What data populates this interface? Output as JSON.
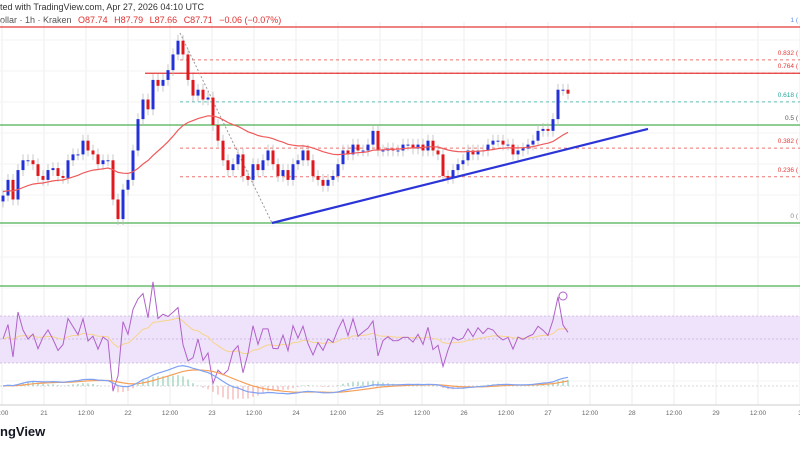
{
  "header": {
    "source_line": "ted with TradingView.com, Apr 27, 2026 04:10 UTC",
    "symbol_line": "ollar · 1h · Kraken",
    "open": "O87.74",
    "high": "H87.79",
    "low": "L87.66",
    "close": "C87.71",
    "change": "−0.06 (−0.07%)"
  },
  "logo_text": "ngView",
  "colors": {
    "up": "#2431d9",
    "down": "#e0191f",
    "trendline": "#2b35d6",
    "support": "#4caf50",
    "resistance": "#e53935",
    "ma": "#f05a5a",
    "rsi": "#b061c9",
    "rsi_band": "#efe2fb"
  },
  "chart_data": {
    "type": "candlestick",
    "interval": "1h",
    "exchange": "Kraken",
    "y_units": "fibonacci retracement ratio (0 = swing low, 1 = swing high)",
    "x_ticks": [
      "2:00",
      "21",
      "12:00",
      "22",
      "12:00",
      "23",
      "12:00",
      "24",
      "12:00",
      "25",
      "12:00",
      "26",
      "12:00",
      "27",
      "12:00",
      "28",
      "12:00",
      "29",
      "12:00",
      "3"
    ],
    "fib_levels": [
      {
        "label": "1 (",
        "value": 1,
        "color": "#5b8def"
      },
      {
        "label": "0.832 (",
        "value": 0.832,
        "color": "#e53935"
      },
      {
        "label": "0.764 (",
        "value": 0.764,
        "color": "#e53935"
      },
      {
        "label": "0.618 (",
        "value": 0.618,
        "color": "#26a69a"
      },
      {
        "label": "0.5 (",
        "value": 0.5,
        "color": "#555555"
      },
      {
        "label": "0.382 (",
        "value": 0.382,
        "color": "#e53935"
      },
      {
        "label": "0.236 (",
        "value": 0.236,
        "color": "#e53935"
      },
      {
        "label": "0 (",
        "value": 0,
        "color": "#888888"
      }
    ],
    "closes": [
      0.14,
      0.22,
      0.12,
      0.27,
      0.32,
      0.32,
      0.3,
      0.24,
      0.22,
      0.27,
      0.28,
      0.24,
      0.23,
      0.32,
      0.35,
      0.35,
      0.42,
      0.37,
      0.35,
      0.3,
      0.32,
      0.32,
      0.12,
      0.02,
      0.17,
      0.22,
      0.37,
      0.53,
      0.63,
      0.58,
      0.73,
      0.7,
      0.73,
      0.78,
      0.86,
      0.93,
      0.86,
      0.73,
      0.65,
      0.68,
      0.63,
      0.64,
      0.5,
      0.42,
      0.32,
      0.27,
      0.3,
      0.35,
      0.24,
      0.22,
      0.3,
      0.27,
      0.32,
      0.37,
      0.3,
      0.24,
      0.27,
      0.22,
      0.3,
      0.32,
      0.37,
      0.32,
      0.24,
      0.22,
      0.19,
      0.22,
      0.24,
      0.3,
      0.37,
      0.35,
      0.4,
      0.37,
      0.37,
      0.4,
      0.47,
      0.37,
      0.37,
      0.38,
      0.37,
      0.37,
      0.4,
      0.4,
      0.38,
      0.4,
      0.37,
      0.42,
      0.37,
      0.35,
      0.24,
      0.23,
      0.27,
      0.3,
      0.32,
      0.37,
      0.35,
      0.37,
      0.37,
      0.4,
      0.42,
      0.42,
      0.4,
      0.4,
      0.35,
      0.37,
      0.38,
      0.4,
      0.42,
      0.47,
      0.48,
      0.47,
      0.53,
      0.68,
      0.68,
      0.66
    ],
    "horizontal_lines": [
      {
        "kind": "resistance",
        "value": 1
      },
      {
        "kind": "resistance",
        "value": 0.764
      },
      {
        "kind": "support",
        "value": 0.5
      },
      {
        "kind": "support",
        "value": 0
      }
    ],
    "trendline": {
      "kind": "bullish support",
      "from_value": 0,
      "to_value": 0.48
    }
  }
}
